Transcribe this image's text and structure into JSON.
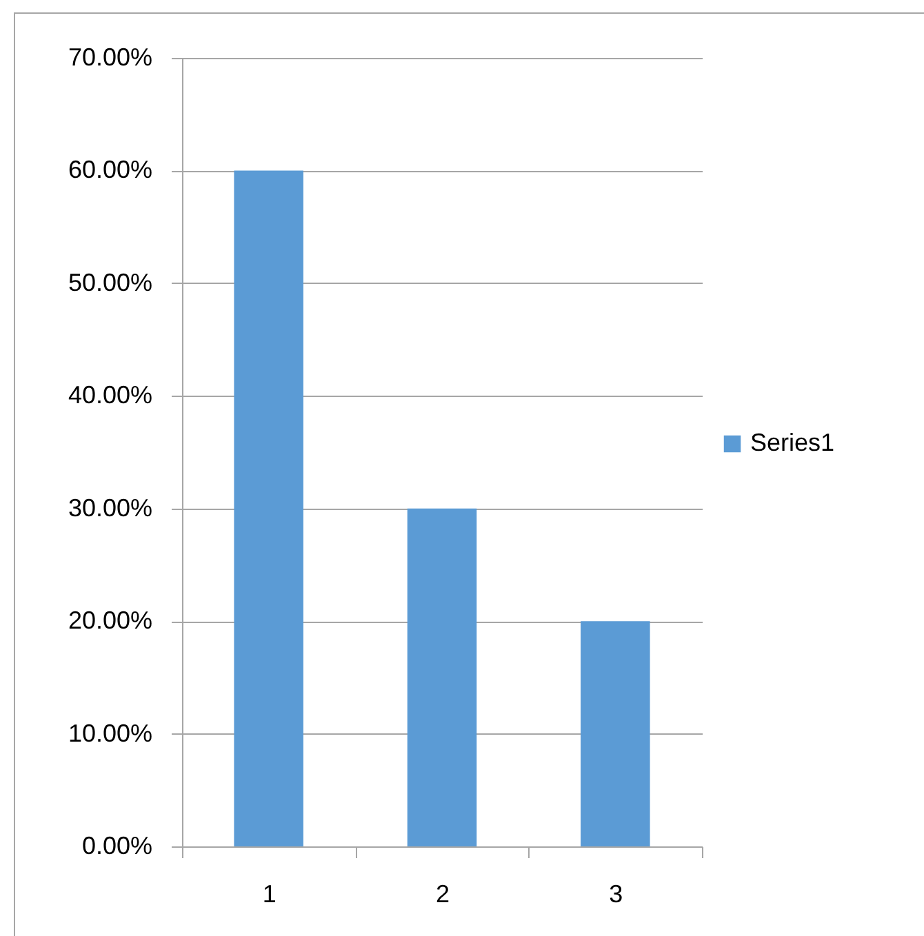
{
  "chart_data": {
    "type": "bar",
    "categories": [
      "1",
      "2",
      "3"
    ],
    "series": [
      {
        "name": "Series1",
        "color": "#5b9bd5",
        "values": [
          60,
          30,
          20
        ]
      }
    ],
    "ylim": [
      0,
      70
    ],
    "yticks": [
      {
        "value": 0,
        "label": "0.00%"
      },
      {
        "value": 10,
        "label": "10.00%"
      },
      {
        "value": 20,
        "label": "20.00%"
      },
      {
        "value": 30,
        "label": "30.00%"
      },
      {
        "value": 40,
        "label": "40.00%"
      },
      {
        "value": 50,
        "label": "50.00%"
      },
      {
        "value": 60,
        "label": "60.00%"
      },
      {
        "value": 70,
        "label": "70.00%"
      }
    ],
    "grid": "y",
    "legend": "right"
  }
}
